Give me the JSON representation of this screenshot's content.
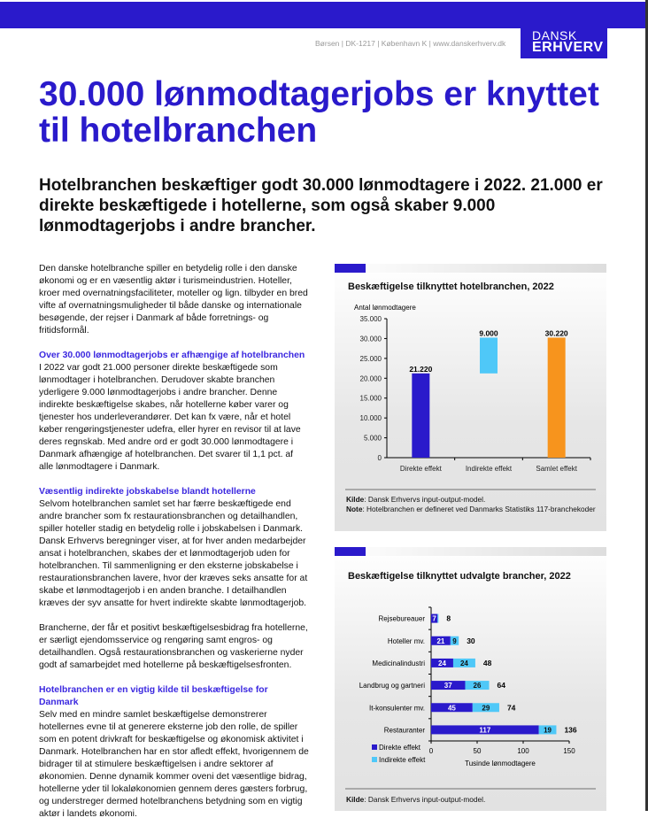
{
  "header": {
    "address": "Børsen | DK-1217 | København K | www.danskerhverv.dk",
    "logo_line1": "DANSK",
    "logo_line2": "ERHVERV"
  },
  "title": "30.000 lønmodtagerjobs er knyttet til hotelbranchen",
  "subtitle": "Hotelbranchen beskæftiger godt 30.000 lønmodtagere i 2022. 21.000 er direkte beskæftigede i hotellerne, som også skaber 9.000 lønmodtagerjobs i andre brancher.",
  "body": {
    "p1": "Den danske hotelbranche spiller en betydelig rolle i den danske økonomi og er en væsentlig aktør i turismeindustrien. Hoteller, kroer med overnatningsfaciliteter, moteller og lign. tilbyder en bred vifte af overnatningsmuligheder til både danske og internationale besøgende, der rejser i Danmark af både forretnings- og fritidsformål.",
    "h1": "Over 30.000 lønmodtagerjobs er afhængige af hotelbranchen",
    "p2": "I 2022 var godt 21.000 personer direkte beskæftigede som lønmodtager i hotelbranchen. Derudover skabte branchen yderligere 9.000 lønmodtagerjobs i andre brancher. Denne indirekte beskæftigelse skabes, når hotellerne køber varer og tjenester hos underleverandører. Det kan fx være, når et hotel køber rengøringstjenester udefra, eller hyrer en revisor til at lave deres regnskab. Med andre ord er godt 30.000 lønmodtagere i Danmark afhængige af hotelbranchen. Det svarer til 1,1 pct. af alle lønmodtagere i Danmark.",
    "h2": "Væsentlig indirekte jobskabelse blandt hotellerne",
    "p3": "Selvom hotelbranchen samlet set har færre beskæftigede end andre brancher som fx restaurationsbranchen og detailhandlen, spiller hoteller stadig en betydelig rolle i jobskabelsen i Danmark. Dansk Erhvervs beregninger viser, at for hver anden medarbejder ansat i hotelbranchen, skabes der et lønmodtagerjob uden for hotelbranchen. Til sammenligning er den eksterne jobskabelse i restaurationsbranchen lavere, hvor der kræves seks ansatte for at skabe et lønmodtagerjob i en anden branche. I detailhandlen kræves der syv ansatte for hvert indirekte skabte lønmodtagerjob.",
    "p4": "Brancherne, der får et positivt beskæftigelsesbidrag fra hotellerne, er særligt ejendomsservice og rengøring samt engros- og detailhandlen. Også restaurationsbranchen og vaskerierne nyder godt af samarbejdet med hotellerne på beskæftigelsesfronten.",
    "h3": "Hotelbranchen er en vigtig kilde til beskæftigelse for Danmark",
    "p5": "Selv med en mindre samlet beskæftigelse demonstrerer hotellernes evne til at generere eksterne job den rolle, de spiller som en potent drivkraft for beskæftigelse og økonomisk aktivitet i Danmark. Hotelbranchen har en stor afledt effekt, hvorigennem de bidrager til at stimulere beskæftigelsen i andre sektorer af økonomien. Denne dynamik kommer oveni det væsentlige bidrag, hotellerne yder til lokaløkonomien gennem deres gæsters forbrug, og understreger dermed hotelbranchens betydning som en vigtig aktør i landets økonomi."
  },
  "colors": {
    "direkte": "#2a1acb",
    "indirekte": "#4fc8f8",
    "samlet": "#f7941d",
    "accent": "#2a1acb"
  },
  "chart_data": [
    {
      "type": "bar",
      "title": "Beskæftigelse tilknyttet hotelbranchen, 2022",
      "ylabel": "Antal lønmodtagere",
      "categories": [
        "Direkte effekt",
        "Indirekte effekt",
        "Samlet effekt"
      ],
      "values": [
        21220,
        9000,
        30220
      ],
      "bases": [
        0,
        21220,
        0
      ],
      "labels": [
        "21.220",
        "9.000",
        "30.220"
      ],
      "ylim": [
        0,
        35000
      ],
      "yticks": [
        "0",
        "5.000",
        "10.000",
        "15.000",
        "20.000",
        "25.000",
        "30.000",
        "35.000"
      ],
      "source_label": "Kilde",
      "source": ": Dansk Erhvervs input-output-model.",
      "note_label": "Note",
      "note": ": Hotelbranchen er defineret ved Danmarks Statistiks 117-branchekoder"
    },
    {
      "type": "bar",
      "orientation": "horizontal",
      "stacked": true,
      "title": "Beskæftigelse tilknyttet udvalgte brancher, 2022",
      "xlabel": "Tusinde lønmodtagere",
      "categories": [
        "Rejsebureauer",
        "Hoteller mv.",
        "Medicinalindustri",
        "Landbrug og gartneri",
        "It-konsulenter mv.",
        "Restauranter"
      ],
      "series": [
        {
          "name": "Direkte effekt",
          "values": [
            7,
            21,
            24,
            37,
            45,
            117
          ]
        },
        {
          "name": "Indirekte effekt",
          "values": [
            1,
            9,
            24,
            26,
            29,
            19
          ]
        }
      ],
      "totals": [
        8,
        30,
        48,
        64,
        74,
        136
      ],
      "xlim": [
        0,
        150
      ],
      "xticks": [
        "0",
        "50",
        "100",
        "150"
      ],
      "legend": "bottom-left",
      "source_label": "Kilde",
      "source": ": Dansk Erhvervs input-output-model."
    }
  ]
}
